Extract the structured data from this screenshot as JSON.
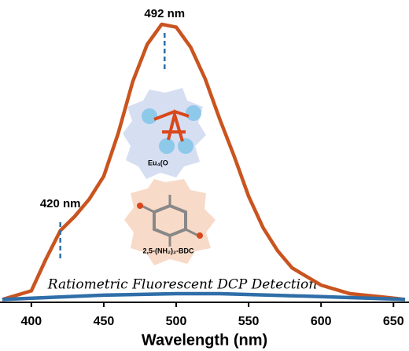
{
  "chart_data": {
    "type": "line",
    "xlabel": "Wavelength (nm)",
    "xlim": [
      380,
      658
    ],
    "xticks": [
      400,
      450,
      500,
      550,
      600,
      650
    ],
    "ylim": [
      0,
      1
    ],
    "series": [
      {
        "color": "#c9541f",
        "x": [
          380,
          400,
          410,
          420,
          430,
          440,
          450,
          460,
          470,
          480,
          490,
          500,
          510,
          520,
          530,
          540,
          550,
          560,
          570,
          580,
          600,
          620,
          640,
          658
        ],
        "values": [
          0.01,
          0.04,
          0.15,
          0.25,
          0.3,
          0.36,
          0.44,
          0.59,
          0.77,
          0.9,
          0.97,
          0.96,
          0.89,
          0.78,
          0.64,
          0.51,
          0.37,
          0.26,
          0.18,
          0.12,
          0.06,
          0.03,
          0.02,
          0.01
        ]
      },
      {
        "color": "#2f6ea8",
        "x": [
          380,
          450,
          500,
          530,
          600,
          658
        ],
        "values": [
          0.01,
          0.025,
          0.03,
          0.03,
          0.02,
          0.01
        ]
      }
    ],
    "annotations": [
      {
        "text": "492 nm",
        "x": 492
      },
      {
        "text": "420 nm",
        "x": 420
      }
    ],
    "caption": "Ratiometric Fluorescent DCP Detection",
    "inset_labels": [
      "Eu₄(O",
      "2,5-(NH₂)₂-BDC"
    ]
  }
}
